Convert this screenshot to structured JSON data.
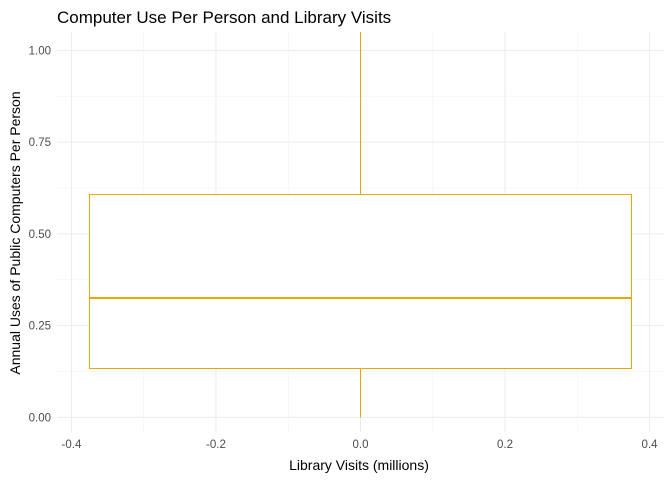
{
  "chart_data": {
    "type": "boxplot",
    "title": "Computer Use Per Person and Library Visits",
    "xlabel": "Library Visits (millions)",
    "ylabel": "Annual Uses of Public Computers Per Person",
    "xlim": [
      -0.42,
      0.42
    ],
    "ylim": [
      -0.04,
      1.05
    ],
    "x_ticks": [
      -0.4,
      -0.2,
      0.0,
      0.2,
      0.4
    ],
    "x_tick_labels": [
      "-0.4",
      "-0.2",
      "0.0",
      "0.2",
      "0.4"
    ],
    "y_ticks": [
      0.0,
      0.25,
      0.5,
      0.75,
      1.0
    ],
    "y_tick_labels": [
      "0.00",
      "0.25",
      "0.50",
      "0.75",
      "1.00"
    ],
    "grid": true,
    "box": {
      "x_center": 0.0,
      "x_left": -0.375,
      "x_right": 0.375,
      "whisker_low": 0.0,
      "q1": 0.133,
      "median": 0.325,
      "q3": 0.607,
      "whisker_high": 1.05
    },
    "colors": {
      "box": "#E8A800",
      "grid_major": "#EBEBEB",
      "grid_minor": "#F3F3F3"
    }
  }
}
